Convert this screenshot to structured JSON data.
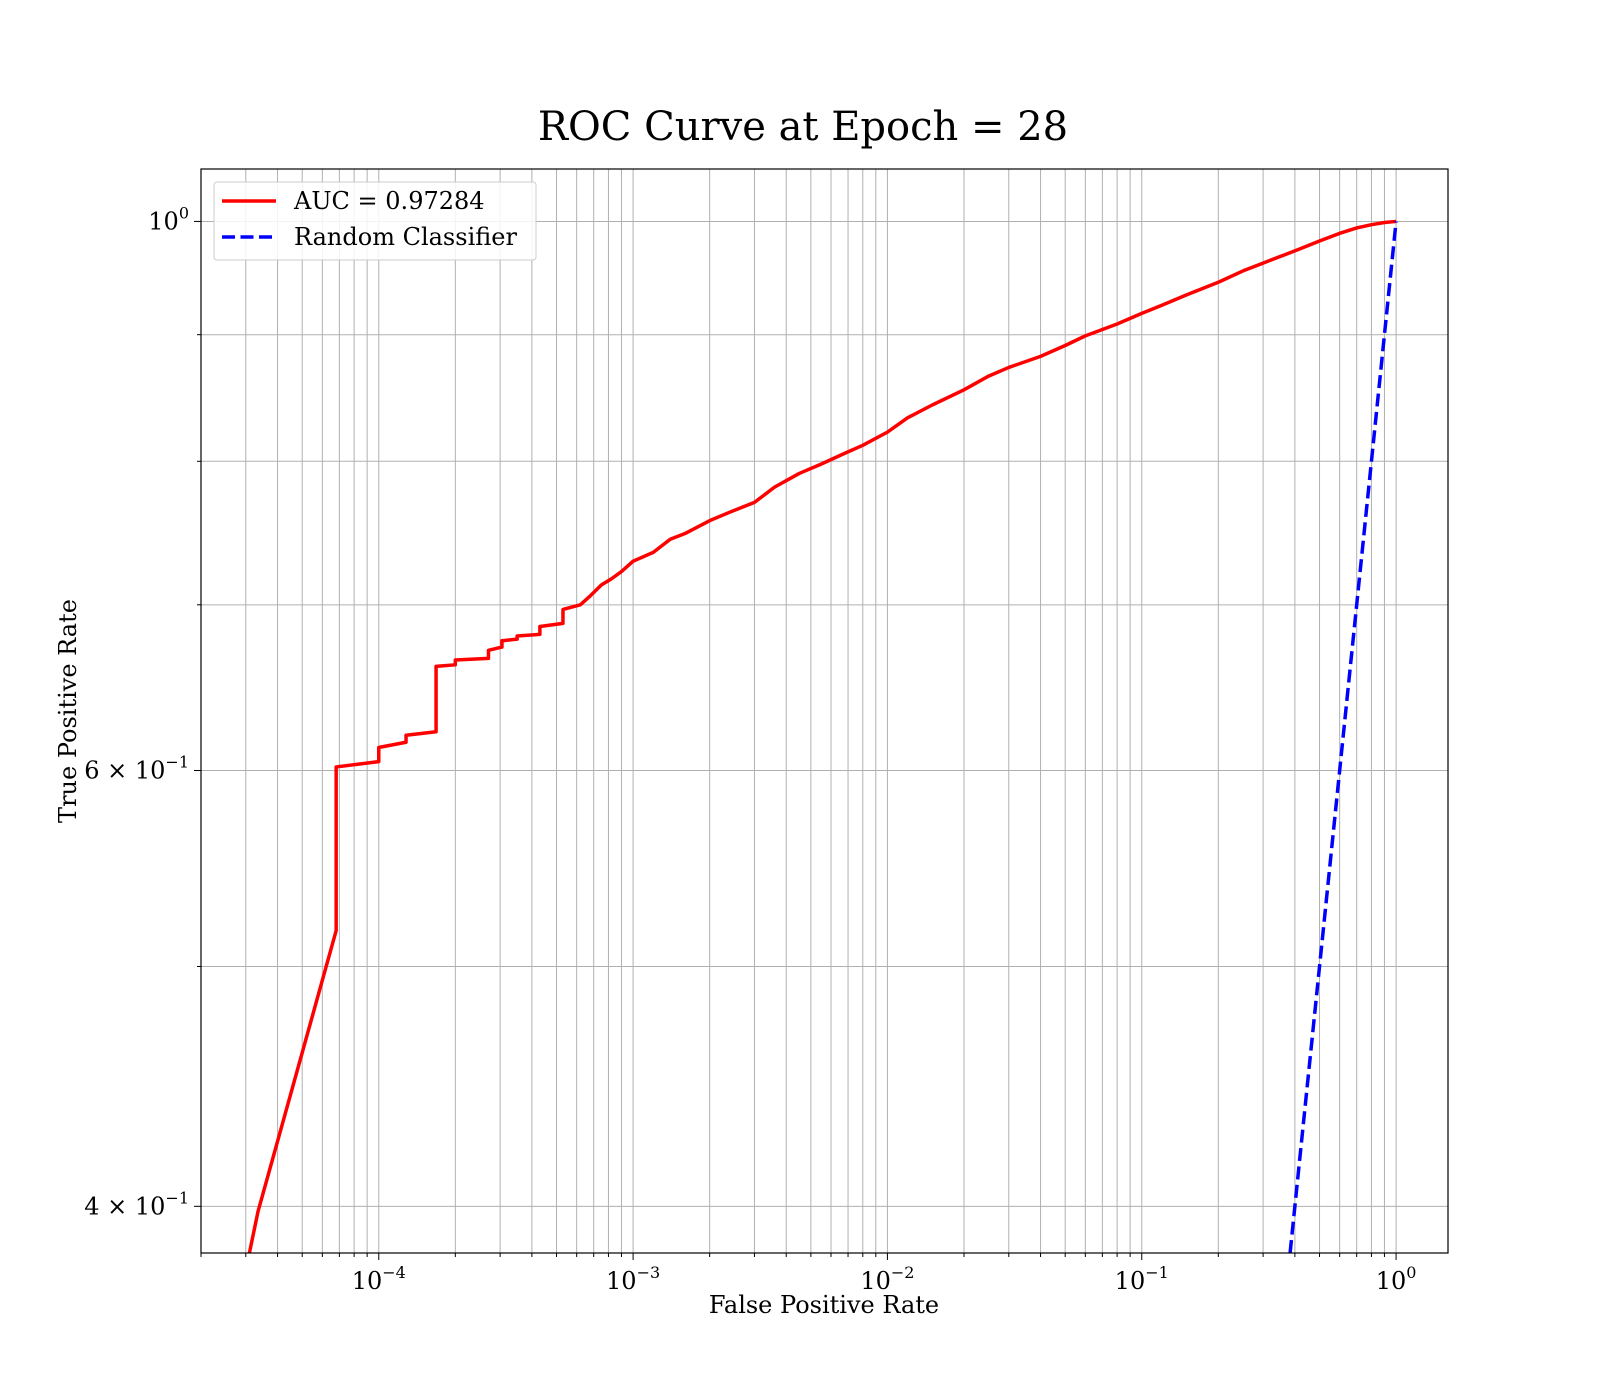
{
  "chart_data": {
    "type": "line",
    "title": "ROC Curve at Epoch = 28",
    "xlabel": "False Positive Rate",
    "ylabel": "True Positive Rate",
    "xscale": "log",
    "yscale": "log",
    "xlim": [
      2e-05,
      1.6
    ],
    "ylim": [
      0.383,
      1.05
    ],
    "grid": true,
    "grid_which": "both",
    "legend_position": "upper-left",
    "x_major_ticks": [
      {
        "value": 0.0001,
        "base": "10",
        "exp": "−4"
      },
      {
        "value": 0.001,
        "base": "10",
        "exp": "−3"
      },
      {
        "value": 0.01,
        "base": "10",
        "exp": "−2"
      },
      {
        "value": 0.1,
        "base": "10",
        "exp": "−1"
      },
      {
        "value": 1,
        "base": "10",
        "exp": "0"
      }
    ],
    "y_major_ticks": [
      {
        "value": 1.0,
        "base": "10",
        "exp": "0"
      },
      {
        "value": 0.6,
        "base": "6 × 10",
        "exp": "−1"
      },
      {
        "value": 0.4,
        "base": "4 × 10",
        "exp": "−1"
      }
    ],
    "y_minor_ticks": [
      0.5,
      0.7,
      0.8,
      0.9
    ],
    "series": [
      {
        "name": "AUC = 0.97284",
        "color": "#ff0000",
        "style": "solid",
        "x": [
          3.1e-05,
          3.35e-05,
          6.8e-05,
          6.8e-05,
          0.0001,
          0.0001,
          0.000128,
          0.000128,
          0.000168,
          0.000168,
          0.0002,
          0.0002,
          0.00027,
          0.00027,
          0.000305,
          0.000305,
          0.00035,
          0.00035,
          0.00043,
          0.00043,
          0.00053,
          0.00053,
          0.00062,
          0.00068,
          0.00075,
          0.00082,
          0.0009,
          0.001,
          0.0012,
          0.0014,
          0.0016,
          0.002,
          0.0024,
          0.003,
          0.0036,
          0.0045,
          0.0055,
          0.0068,
          0.008,
          0.01,
          0.012,
          0.015,
          0.02,
          0.025,
          0.03,
          0.04,
          0.05,
          0.06,
          0.08,
          0.1,
          0.12,
          0.15,
          0.2,
          0.25,
          0.3,
          0.4,
          0.5,
          0.6,
          0.7,
          0.8,
          0.9,
          1.0
        ],
        "y": [
          0.383,
          0.398,
          0.517,
          0.602,
          0.605,
          0.613,
          0.616,
          0.62,
          0.622,
          0.661,
          0.662,
          0.665,
          0.666,
          0.671,
          0.673,
          0.677,
          0.678,
          0.68,
          0.681,
          0.686,
          0.688,
          0.697,
          0.7,
          0.706,
          0.713,
          0.717,
          0.722,
          0.729,
          0.735,
          0.744,
          0.748,
          0.757,
          0.763,
          0.77,
          0.781,
          0.791,
          0.798,
          0.806,
          0.812,
          0.822,
          0.833,
          0.843,
          0.855,
          0.866,
          0.873,
          0.882,
          0.891,
          0.899,
          0.909,
          0.918,
          0.925,
          0.934,
          0.945,
          0.955,
          0.962,
          0.973,
          0.982,
          0.989,
          0.994,
          0.997,
          0.999,
          1.0
        ]
      },
      {
        "name": "Random Classifier",
        "color": "#0000ff",
        "style": "dashed",
        "x": [
          0.383,
          0.5,
          0.6,
          0.7,
          0.8,
          0.9,
          1.0
        ],
        "y": [
          0.383,
          0.5,
          0.6,
          0.7,
          0.8,
          0.9,
          1.0
        ]
      }
    ]
  }
}
